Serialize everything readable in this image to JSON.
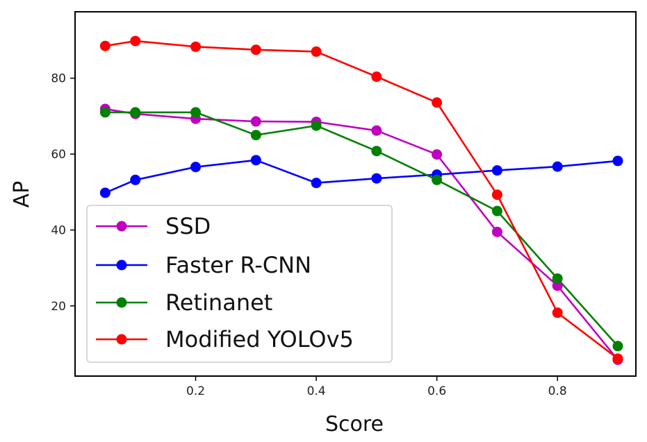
{
  "chart_data": {
    "type": "line",
    "title": "",
    "xlabel": "Score",
    "ylabel": "AP",
    "xlim": [
      0.0,
      0.93
    ],
    "ylim": [
      1.5,
      97.5
    ],
    "xticks": [
      0.2,
      0.4,
      0.6,
      0.8
    ],
    "xtick_labels": [
      "0.2",
      "0.4",
      "0.6",
      "0.8"
    ],
    "yticks": [
      20,
      40,
      60,
      80
    ],
    "ytick_labels": [
      "20",
      "40",
      "60",
      "80"
    ],
    "grid": false,
    "legend_position": "lower-left",
    "x": [
      0.05,
      0.1,
      0.2,
      0.3,
      0.4,
      0.5,
      0.6,
      0.7,
      0.8,
      0.9
    ],
    "series": [
      {
        "name": "SSD",
        "color": "#bf00bf",
        "values": [
          71.9,
          70.6,
          69.3,
          68.6,
          68.5,
          66.2,
          59.9,
          39.5,
          25.3,
          5.8
        ]
      },
      {
        "name": "Faster R-CNN",
        "color": "#0000ff",
        "values": [
          49.8,
          53.2,
          56.6,
          58.4,
          52.4,
          53.6,
          54.6,
          55.7,
          56.7,
          58.2
        ]
      },
      {
        "name": "Retinanet",
        "color": "#008000",
        "values": [
          71.0,
          71.0,
          71.0,
          65.0,
          67.5,
          60.8,
          53.2,
          45.0,
          27.2,
          9.4
        ]
      },
      {
        "name": "Modified YOLOv5",
        "color": "#ff0000",
        "values": [
          88.5,
          89.8,
          88.3,
          87.5,
          87.0,
          80.4,
          73.6,
          49.3,
          18.2,
          6.1
        ]
      }
    ]
  }
}
